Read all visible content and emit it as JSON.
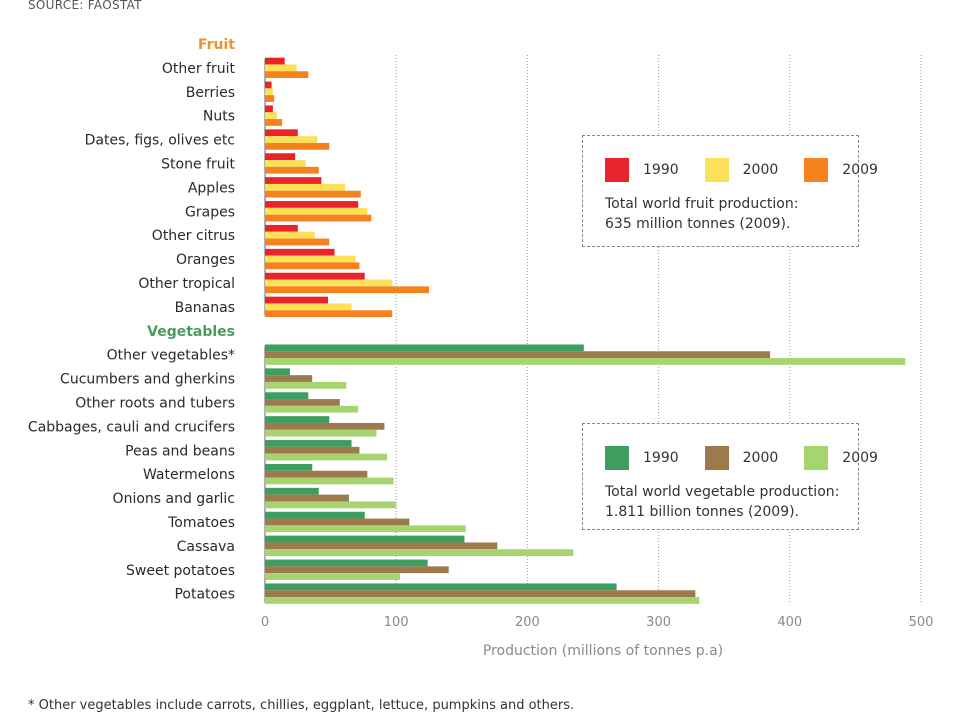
{
  "source": "SOURCE: FAOSTAT",
  "footnote": "* Other vegetables include carrots, chillies, eggplant, lettuce, pumpkins and others.",
  "legends": {
    "fruit": {
      "items": [
        {
          "label": "1990",
          "color": "#e8232a"
        },
        {
          "label": "2000",
          "color": "#fde05a"
        },
        {
          "label": "2009",
          "color": "#f5821f"
        }
      ],
      "note_line1": "Total world fruit production:",
      "note_line2": "635 million tonnes (2009)."
    },
    "vegetables": {
      "items": [
        {
          "label": "1990",
          "color": "#3d9e5f"
        },
        {
          "label": "2000",
          "color": "#9c7a4e"
        },
        {
          "label": "2009",
          "color": "#a8d46f"
        }
      ],
      "note_line1": "Total world vegetable production:",
      "note_line2": "1.811 billion tonnes (2009)."
    }
  },
  "chart_data": {
    "type": "bar",
    "orientation": "horizontal",
    "xlabel": "Production (millions of tonnes p.a)",
    "xlim": [
      0,
      500
    ],
    "xticks": [
      "0",
      "100",
      "200",
      "300",
      "400",
      "500"
    ],
    "grid": "vertical dotted",
    "years": [
      "1990",
      "2000",
      "2009"
    ],
    "groups": [
      {
        "name": "Fruit",
        "colors": [
          "#e8232a",
          "#fde05a",
          "#f5821f"
        ],
        "categories": [
          "Other fruit",
          "Berries",
          "Nuts",
          "Dates, figs, olives etc",
          "Stone fruit",
          "Apples",
          "Grapes",
          "Other citrus",
          "Oranges",
          "Other tropical",
          "Bananas"
        ],
        "values": [
          [
            15,
            24,
            33
          ],
          [
            5,
            6,
            7
          ],
          [
            6,
            9,
            13
          ],
          [
            25,
            40,
            49
          ],
          [
            23,
            31,
            41
          ],
          [
            43,
            61,
            73
          ],
          [
            71,
            78,
            81
          ],
          [
            25,
            38,
            49
          ],
          [
            53,
            69,
            72
          ],
          [
            76,
            97,
            125
          ],
          [
            48,
            66,
            97
          ]
        ]
      },
      {
        "name": "Vegetables",
        "colors": [
          "#3d9e5f",
          "#9c7a4e",
          "#a8d46f"
        ],
        "categories": [
          "Other vegetables*",
          "Cucumbers and gherkins",
          "Other roots and tubers",
          "Cabbages, cauli and crucifers",
          "Peas and beans",
          "Watermelons",
          "Onions and garlic",
          "Tomatoes",
          "Cassava",
          "Sweet potatoes",
          "Potatoes"
        ],
        "values": [
          [
            243,
            385,
            488
          ],
          [
            19,
            36,
            62
          ],
          [
            33,
            57,
            71
          ],
          [
            49,
            91,
            85
          ],
          [
            66,
            72,
            93
          ],
          [
            36,
            78,
            98
          ],
          [
            41,
            64,
            100
          ],
          [
            76,
            110,
            153
          ],
          [
            152,
            177,
            235
          ],
          [
            124,
            140,
            103
          ],
          [
            268,
            328,
            331
          ]
        ]
      }
    ]
  }
}
